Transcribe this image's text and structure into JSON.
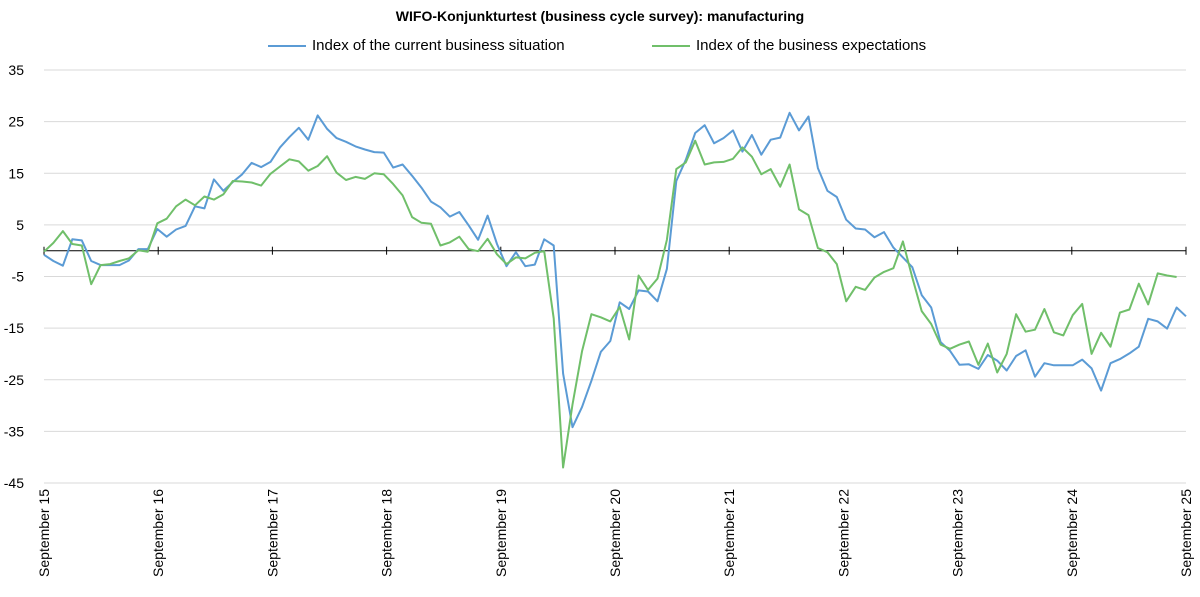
{
  "chart_data": {
    "type": "line",
    "title": "WIFO-Konjunkturtest (business cycle survey): manufacturing",
    "xlabel": "",
    "ylabel": "",
    "ylim": [
      -45,
      35
    ],
    "yticks": [
      35,
      25,
      15,
      5,
      -5,
      -15,
      -25,
      -35,
      -45
    ],
    "baseline": 0,
    "grid": true,
    "legend_position": "top",
    "x_tick_labels": [
      "September 15",
      "September 16",
      "September 17",
      "September 18",
      "September 19",
      "September 20",
      "September 21",
      "September 22",
      "September 23",
      "September 24",
      "September 25"
    ],
    "x_start": "2015-09",
    "x_end": "2025-09",
    "series": [
      {
        "name": "Index of the current business situation",
        "color": "#5B9BD5",
        "values": [
          -0.8,
          -2.0,
          -2.9,
          2.2,
          2.0,
          -2.0,
          -2.8,
          -2.8,
          -2.8,
          -1.9,
          0.3,
          0.3,
          4.2,
          2.7,
          4.1,
          4.8,
          8.6,
          8.2,
          13.8,
          11.6,
          13.3,
          14.8,
          17.0,
          16.2,
          17.2,
          20.0,
          22.0,
          23.8,
          21.5,
          26.2,
          23.6,
          21.8,
          21.1,
          20.2,
          19.6,
          19.1,
          19.0,
          16.1,
          16.7,
          14.5,
          12.2,
          9.5,
          8.4,
          6.6,
          7.5,
          4.9,
          2.1,
          6.8,
          1.3,
          -3.0,
          -0.3,
          -3.0,
          -2.7,
          2.2,
          1.0,
          -23.8,
          -34.2,
          -30.3,
          -25.2,
          -19.6,
          -17.5,
          -10.0,
          -11.3,
          -7.7,
          -7.9,
          -9.8,
          -3.5,
          13.5,
          17.6,
          22.8,
          24.3,
          20.8,
          21.8,
          23.3,
          19.2,
          22.4,
          18.6,
          21.5,
          21.9,
          26.7,
          23.3,
          26.0,
          16.0,
          11.6,
          10.4,
          6.0,
          4.3,
          4.1,
          2.6,
          3.6,
          0.6,
          -1.3,
          -3.2,
          -8.6,
          -11.0,
          -17.7,
          -19.4,
          -22.1,
          -22.0,
          -22.9,
          -20.2,
          -21.3,
          -23.2,
          -20.4,
          -19.3,
          -24.4,
          -21.8,
          -22.2,
          -22.2,
          -22.2,
          -21.1,
          -22.8,
          -27.1,
          -21.8,
          -21.0,
          -19.9,
          -18.6,
          -13.2,
          -13.7,
          -15.1,
          -11.0,
          -12.7
        ]
      },
      {
        "name": "Index of the business expectations",
        "color": "#70BF6A",
        "values": [
          -0.2,
          1.5,
          3.8,
          1.3,
          1.0,
          -6.5,
          -2.8,
          -2.6,
          -2.0,
          -1.5,
          0.1,
          -0.2,
          5.3,
          6.2,
          8.6,
          9.9,
          8.8,
          10.5,
          9.9,
          10.9,
          13.5,
          13.4,
          13.2,
          12.6,
          14.9,
          16.3,
          17.7,
          17.3,
          15.5,
          16.4,
          18.3,
          15.1,
          13.7,
          14.3,
          13.9,
          15.0,
          14.8,
          12.9,
          10.7,
          6.5,
          5.4,
          5.2,
          1.0,
          1.6,
          2.7,
          0.3,
          -0.1,
          2.3,
          -0.7,
          -2.6,
          -1.3,
          -1.5,
          -0.4,
          -0.1,
          -13.1,
          -42.0,
          -29.8,
          -19.5,
          -12.3,
          -12.9,
          -13.7,
          -10.9,
          -17.2,
          -4.8,
          -7.6,
          -5.4,
          2.1,
          15.8,
          17.1,
          21.3,
          16.7,
          17.1,
          17.2,
          17.8,
          20.0,
          18.2,
          14.8,
          15.8,
          12.4,
          16.7,
          8.0,
          6.9,
          0.5,
          -0.3,
          -2.6,
          -9.8,
          -7.0,
          -7.6,
          -5.2,
          -4.1,
          -3.4,
          1.8,
          -5.2,
          -11.7,
          -14.2,
          -18.2,
          -19.0,
          -18.2,
          -17.6,
          -22.1,
          -18.0,
          -23.6,
          -20.0,
          -12.3,
          -15.7,
          -15.3,
          -11.3,
          -15.8,
          -16.4,
          -12.5,
          -10.3,
          -20.0,
          -15.9,
          -18.6,
          -12.0,
          -11.4,
          -6.4,
          -10.4,
          -4.4,
          -4.8,
          -5.1
        ]
      }
    ]
  }
}
